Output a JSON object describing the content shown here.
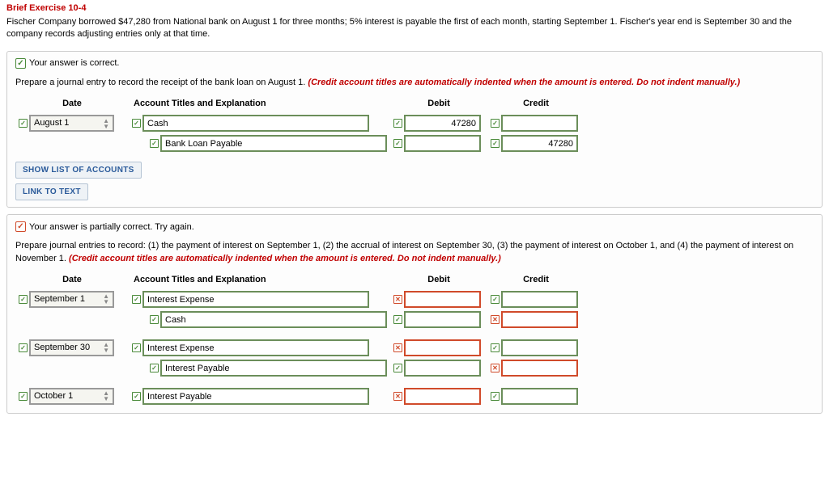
{
  "exercise": {
    "title": "Brief Exercise 10-4",
    "description": "Fischer Company borrowed $47,280 from National bank on August 1 for three months; 5% interest is payable the first of each month, starting September 1. Fischer's year end is September 30 and the company records adjusting entries only at that time."
  },
  "section1": {
    "feedback": "Your answer is correct.",
    "feedback_state": "correct",
    "instruction_plain": "Prepare a journal entry to record the receipt of the bank loan on August 1. ",
    "instruction_red": "(Credit account titles are automatically indented when the amount is entered. Do not indent manually.)",
    "headers": {
      "date": "Date",
      "account": "Account Titles and Explanation",
      "debit": "Debit",
      "credit": "Credit"
    },
    "rows": [
      {
        "date": {
          "value": "August 1",
          "show": true,
          "mark": "correct",
          "border": "gray"
        },
        "account": {
          "value": "Cash",
          "mark": "correct",
          "border": "ok"
        },
        "debit": {
          "value": "47280",
          "mark": "correct",
          "border": "ok"
        },
        "credit": {
          "value": "",
          "mark": "correct",
          "border": "ok"
        }
      },
      {
        "date": {
          "show": false
        },
        "account": {
          "value": "Bank Loan Payable",
          "indent": true,
          "mark": "correct",
          "border": "ok"
        },
        "debit": {
          "value": "",
          "mark": "correct",
          "border": "ok"
        },
        "credit": {
          "value": "47280",
          "mark": "correct",
          "border": "ok"
        }
      }
    ],
    "buttons": {
      "show_accounts": "SHOW LIST OF ACCOUNTS",
      "link_text": "LINK TO TEXT"
    }
  },
  "section2": {
    "feedback": "Your answer is partially correct.  Try again.",
    "feedback_state": "partial",
    "instruction_plain": "Prepare journal entries to record: (1) the payment of interest on September 1, (2) the accrual of interest on September 30, (3) the payment of interest on October 1, and (4) the payment of interest on November 1. ",
    "instruction_red": "(Credit account titles are automatically indented when the amount is entered. Do not indent manually.)",
    "headers": {
      "date": "Date",
      "account": "Account Titles and Explanation",
      "debit": "Debit",
      "credit": "Credit"
    },
    "rows": [
      {
        "date": {
          "value": "September 1",
          "show": true,
          "mark": "correct",
          "border": "gray"
        },
        "account": {
          "value": "Interest Expense",
          "mark": "correct",
          "border": "ok"
        },
        "debit": {
          "value": "",
          "mark": "wrong",
          "border": "bad"
        },
        "credit": {
          "value": "",
          "mark": "correct",
          "border": "ok"
        }
      },
      {
        "date": {
          "show": false
        },
        "account": {
          "value": "Cash",
          "indent": true,
          "mark": "correct",
          "border": "ok"
        },
        "debit": {
          "value": "",
          "mark": "correct",
          "border": "ok"
        },
        "credit": {
          "value": "",
          "mark": "wrong",
          "border": "bad"
        }
      },
      {
        "date": {
          "value": "September 30",
          "show": true,
          "mark": "correct",
          "border": "gray"
        },
        "account": {
          "value": "Interest Expense",
          "mark": "correct",
          "border": "ok"
        },
        "debit": {
          "value": "",
          "mark": "wrong",
          "border": "bad"
        },
        "credit": {
          "value": "",
          "mark": "correct",
          "border": "ok"
        }
      },
      {
        "date": {
          "show": false
        },
        "account": {
          "value": "Interest Payable",
          "indent": true,
          "mark": "correct",
          "border": "ok"
        },
        "debit": {
          "value": "",
          "mark": "correct",
          "border": "ok"
        },
        "credit": {
          "value": "",
          "mark": "wrong",
          "border": "bad"
        }
      },
      {
        "date": {
          "value": "October 1",
          "show": true,
          "mark": "correct",
          "border": "gray"
        },
        "account": {
          "value": "Interest Payable",
          "mark": "correct",
          "border": "ok"
        },
        "debit": {
          "value": "",
          "mark": "wrong",
          "border": "bad"
        },
        "credit": {
          "value": "",
          "mark": "correct",
          "border": "ok"
        }
      }
    ]
  }
}
